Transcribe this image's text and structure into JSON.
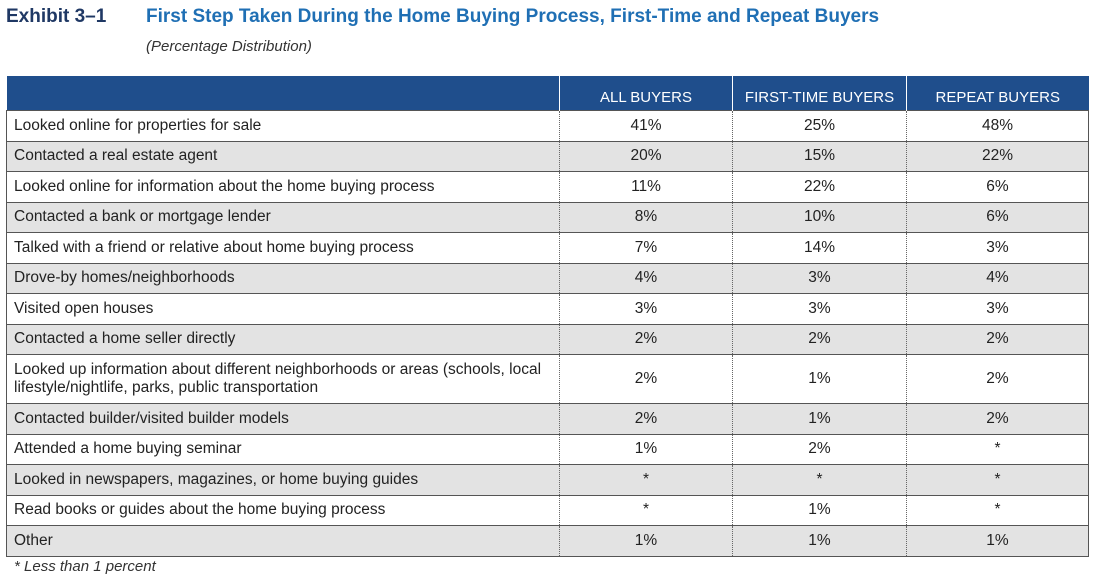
{
  "exhibit_label": "Exhibit 3–1",
  "title": "First Step Taken During the Home Buying Process, First-Time and Repeat Buyers",
  "subtitle": "(Percentage Distribution)",
  "footnote": "* Less than 1 percent",
  "colors": {
    "header_bg": "#1f4e8c",
    "title": "#1f6fb4",
    "exhibit": "#1f3864",
    "row_shade": "#e3e3e3"
  },
  "chart_data": {
    "type": "table",
    "title": "First Step Taken During the Home Buying Process, First-Time and Repeat Buyers",
    "columns": [
      "",
      "ALL BUYERS",
      "FIRST-TIME BUYERS",
      "REPEAT BUYERS"
    ],
    "rows": [
      {
        "label": "Looked online for properties for sale",
        "values": [
          "41%",
          "25%",
          "48%"
        ]
      },
      {
        "label": "Contacted a real estate agent",
        "values": [
          "20%",
          "15%",
          "22%"
        ]
      },
      {
        "label": "Looked online for information about the home buying process",
        "values": [
          "11%",
          "22%",
          "6%"
        ]
      },
      {
        "label": "Contacted a bank or mortgage lender",
        "values": [
          "8%",
          "10%",
          "6%"
        ]
      },
      {
        "label": "Talked with a friend or relative about home buying process",
        "values": [
          "7%",
          "14%",
          "3%"
        ]
      },
      {
        "label": "Drove-by homes/neighborhoods",
        "values": [
          "4%",
          "3%",
          "4%"
        ]
      },
      {
        "label": "Visited open houses",
        "values": [
          "3%",
          "3%",
          "3%"
        ]
      },
      {
        "label": "Contacted a home seller directly",
        "values": [
          "2%",
          "2%",
          "2%"
        ]
      },
      {
        "label": "Looked up information about different neighborhoods or areas (schools, local lifestyle/nightlife, parks, public transportation",
        "values": [
          "2%",
          "1%",
          "2%"
        ]
      },
      {
        "label": "Contacted builder/visited builder models",
        "values": [
          "2%",
          "1%",
          "2%"
        ]
      },
      {
        "label": "Attended a home buying seminar",
        "values": [
          "1%",
          "2%",
          "*"
        ]
      },
      {
        "label": "Looked in newspapers, magazines, or home buying guides",
        "values": [
          "*",
          "*",
          "*"
        ]
      },
      {
        "label": "Read books or guides about the home buying process",
        "values": [
          "*",
          "1%",
          "*"
        ]
      },
      {
        "label": "Other",
        "values": [
          "1%",
          "1%",
          "1%"
        ]
      }
    ]
  }
}
